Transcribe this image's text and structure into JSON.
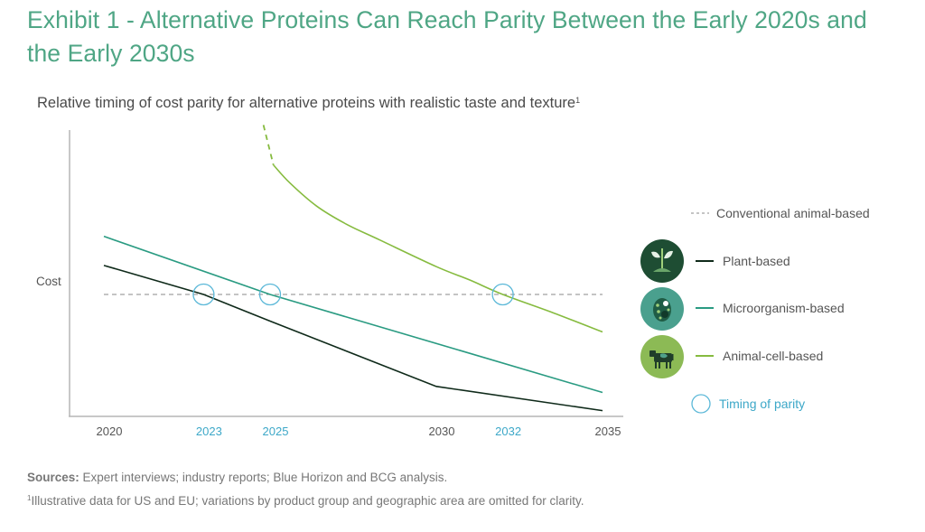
{
  "header": {
    "title": "Exhibit 1 - Alternative Proteins Can Reach Parity Between the Early 2020s and the Early 2030s",
    "subtitle": "Relative timing of cost parity for alternative proteins with realistic taste and texture",
    "subtitle_footnote_marker": "1"
  },
  "chart_data": {
    "type": "line",
    "title": "Relative timing of cost parity for alternative proteins with realistic taste and texture",
    "xlabel": "",
    "ylabel": "Cost",
    "xlim": [
      2020,
      2035
    ],
    "ylim_note": "relative cost index; conventional animal-based = 100",
    "ylim": [
      0,
      240
    ],
    "grid": false,
    "legend_placement": "right",
    "x_ticks": [
      {
        "label": "2020",
        "value": 2020,
        "highlight": false
      },
      {
        "label": "2023",
        "value": 2023,
        "highlight": true
      },
      {
        "label": "2025",
        "value": 2025,
        "highlight": true
      },
      {
        "label": "2030",
        "value": 2030,
        "highlight": false
      },
      {
        "label": "2032",
        "value": 2032,
        "highlight": true
      },
      {
        "label": "2035",
        "value": 2035,
        "highlight": false
      }
    ],
    "series": [
      {
        "name": "Conventional animal-based",
        "color": "#888888",
        "style": "dashed",
        "points": [
          [
            2020,
            100
          ],
          [
            2035,
            100
          ]
        ]
      },
      {
        "name": "Plant-based",
        "color": "#0f2a1a",
        "style": "solid",
        "points": [
          [
            2020,
            124
          ],
          [
            2023,
            100
          ],
          [
            2025,
            78
          ],
          [
            2030,
            24
          ],
          [
            2035,
            4
          ]
        ]
      },
      {
        "name": "Microorganism-based",
        "color": "#2a9b82",
        "style": "solid",
        "points": [
          [
            2020,
            148
          ],
          [
            2025,
            100
          ],
          [
            2035,
            19
          ]
        ]
      },
      {
        "name": "Animal-cell-based",
        "color": "#86bb3f",
        "style": "solid",
        "dashed_lead_in": [
          [
            2024.8,
            240
          ],
          [
            2025.1,
            207
          ]
        ],
        "points": [
          [
            2025.1,
            207
          ],
          [
            2025.6,
            192
          ],
          [
            2026.4,
            173
          ],
          [
            2027.3,
            158
          ],
          [
            2028.3,
            145
          ],
          [
            2030,
            123
          ],
          [
            2031,
            112
          ],
          [
            2032,
            100
          ],
          [
            2033.5,
            85
          ],
          [
            2035,
            69
          ]
        ]
      }
    ],
    "parity_markers": [
      {
        "year": 2023,
        "series": "Plant-based",
        "value": 100
      },
      {
        "year": 2025,
        "series": "Microorganism-based",
        "value": 100
      },
      {
        "year": 2032,
        "series": "Animal-cell-based",
        "value": 100
      }
    ],
    "parity_marker_color": "#5bb8d8"
  },
  "legend": {
    "items": [
      {
        "label": "Conventional animal-based",
        "color": "#888888",
        "style": "dashed",
        "icon": null
      },
      {
        "label": "Plant-based",
        "color": "#0f2a1a",
        "style": "solid",
        "icon": "plant-sprout-icon"
      },
      {
        "label": "Microorganism-based",
        "color": "#2a9b82",
        "style": "solid",
        "icon": "microorganism-cell-icon"
      },
      {
        "label": "Animal-cell-based",
        "color": "#86bb3f",
        "style": "solid",
        "icon": "cow-icon"
      },
      {
        "label": "Timing of parity",
        "color": "#5bb8d8",
        "style": "circle",
        "icon": null
      }
    ]
  },
  "footer": {
    "sources_label": "Sources:",
    "sources_text": " Expert interviews; industry reports; Blue Horizon and BCG analysis.",
    "footnote_marker": "1",
    "footnote_text": "Illustrative data for US and EU; variations by product group and geographic area are omitted for clarity."
  }
}
